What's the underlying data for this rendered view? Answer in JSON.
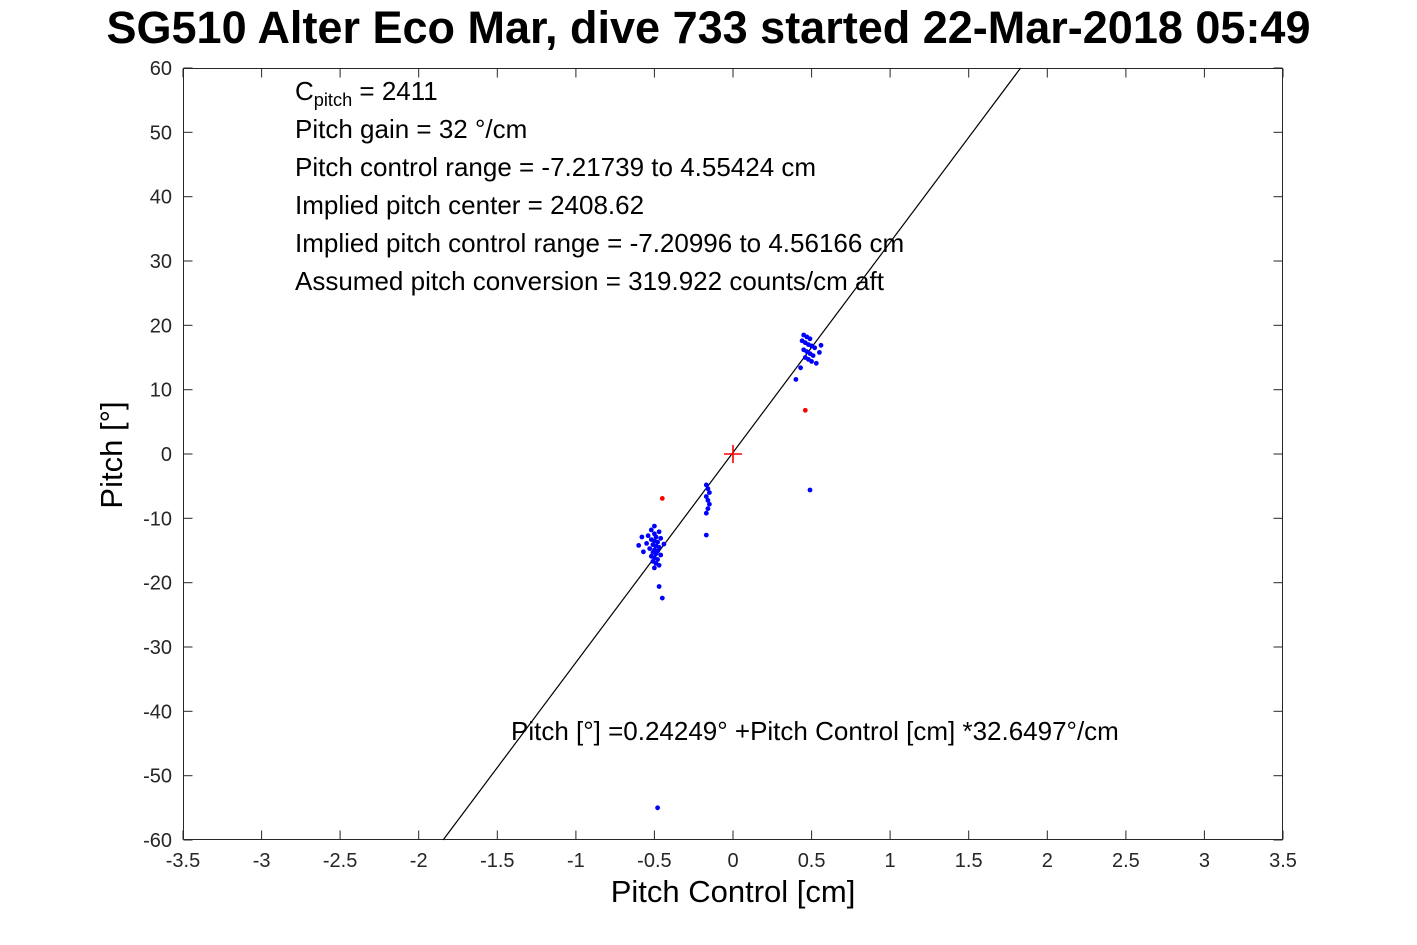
{
  "chart_data": {
    "type": "scatter",
    "title": "SG510 Alter Eco Mar, dive 733 started 22-Mar-2018 05:49",
    "xlabel": "Pitch Control [cm]",
    "ylabel": "Pitch [°]",
    "xlim": [
      -3.5,
      3.5
    ],
    "ylim": [
      -60,
      60
    ],
    "xticks": [
      -3.5,
      -3,
      -2.5,
      -2,
      -1.5,
      -1,
      -0.5,
      0,
      0.5,
      1,
      1.5,
      2,
      2.5,
      3,
      3.5
    ],
    "yticks": [
      -60,
      -50,
      -40,
      -30,
      -20,
      -10,
      0,
      10,
      20,
      30,
      40,
      50,
      60
    ],
    "grid": false,
    "legend": "none",
    "axes_color": "#262626",
    "fit_line": {
      "slope": 32.6497,
      "intercept": 0.24249,
      "color": "#000000",
      "label": "Pitch [°] =0.24249° +Pitch Control [cm] *32.6497°/cm"
    },
    "origin_marker": {
      "x": 0,
      "y": 0,
      "symbol": "+",
      "color": "#ff0000"
    },
    "annotations": {
      "c_label": "C",
      "c_sub": "pitch",
      "c_rest": " = 2411",
      "lines": [
        "Pitch gain = 32 °/cm",
        "Pitch control range = -7.21739 to 4.55424 cm",
        "Implied pitch center = 2408.62",
        "Implied pitch control range = -7.20996 to 4.56166 cm",
        "Assumed pitch conversion = 319.922 counts/cm aft"
      ]
    },
    "series": [
      {
        "name": "pitch-observations",
        "color": "#0000ff",
        "marker": "dot",
        "points": [
          [
            -0.5,
            -11.2
          ],
          [
            -0.52,
            -11.8
          ],
          [
            -0.47,
            -12.1
          ],
          [
            -0.5,
            -12.4
          ],
          [
            -0.54,
            -12.7
          ],
          [
            -0.49,
            -12.9
          ],
          [
            -0.46,
            -13.1
          ],
          [
            -0.52,
            -13.3
          ],
          [
            -0.5,
            -13.5
          ],
          [
            -0.48,
            -13.7
          ],
          [
            -0.55,
            -13.9
          ],
          [
            -0.51,
            -14.1
          ],
          [
            -0.49,
            -14.3
          ],
          [
            -0.47,
            -14.5
          ],
          [
            -0.53,
            -14.7
          ],
          [
            -0.5,
            -14.9
          ],
          [
            -0.48,
            -15.1
          ],
          [
            -0.51,
            -15.3
          ],
          [
            -0.49,
            -15.5
          ],
          [
            -0.46,
            -15.7
          ],
          [
            -0.52,
            -15.9
          ],
          [
            -0.5,
            -16.1
          ],
          [
            -0.48,
            -16.4
          ],
          [
            -0.51,
            -16.7
          ],
          [
            -0.49,
            -17.0
          ],
          [
            -0.47,
            -17.3
          ],
          [
            -0.5,
            -17.7
          ],
          [
            -0.58,
            -12.9
          ],
          [
            -0.57,
            -15.2
          ],
          [
            -0.44,
            -14.0
          ],
          [
            -0.6,
            -14.2
          ],
          [
            -0.47,
            -20.6
          ],
          [
            -0.45,
            -22.4
          ],
          [
            0.45,
            18.5
          ],
          [
            0.47,
            18.2
          ],
          [
            0.49,
            17.9
          ],
          [
            0.44,
            17.6
          ],
          [
            0.46,
            17.3
          ],
          [
            0.48,
            17.0
          ],
          [
            0.5,
            16.8
          ],
          [
            0.52,
            16.5
          ],
          [
            0.45,
            16.2
          ],
          [
            0.47,
            15.9
          ],
          [
            0.49,
            15.6
          ],
          [
            0.51,
            15.3
          ],
          [
            0.46,
            15.0
          ],
          [
            0.48,
            14.7
          ],
          [
            0.5,
            14.4
          ],
          [
            0.53,
            14.1
          ],
          [
            0.55,
            15.8
          ],
          [
            0.56,
            16.9
          ],
          [
            0.43,
            13.4
          ],
          [
            0.4,
            11.6
          ],
          [
            -0.17,
            -4.8
          ],
          [
            -0.16,
            -5.4
          ],
          [
            -0.15,
            -6.0
          ],
          [
            -0.17,
            -6.6
          ],
          [
            -0.16,
            -7.2
          ],
          [
            -0.15,
            -7.8
          ],
          [
            -0.16,
            -8.5
          ],
          [
            -0.17,
            -9.2
          ],
          [
            -0.17,
            -12.6
          ],
          [
            0.49,
            -5.6
          ],
          [
            -0.48,
            -55.0
          ]
        ]
      },
      {
        "name": "flagged-observations",
        "color": "#ff0000",
        "marker": "dot",
        "points": [
          [
            -0.45,
            -6.9
          ],
          [
            0.46,
            6.8
          ]
        ]
      }
    ]
  }
}
